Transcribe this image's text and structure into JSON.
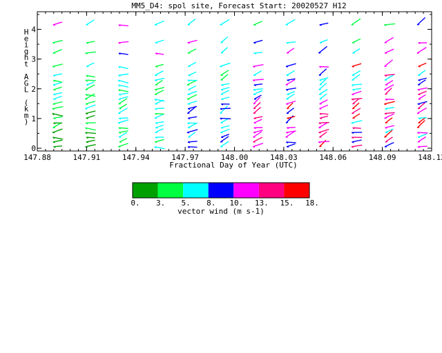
{
  "chart_data": {
    "type": "vector-field",
    "title": "MM5_D4: spol site,  Forecast Start: 20020527 H12",
    "xlabel": "Fractional Day of Year (UTC)",
    "ylabel": [
      "H",
      "e",
      "i",
      "g",
      "h",
      "t",
      "",
      "A",
      "G",
      "L",
      "",
      "(",
      "k",
      "m",
      ")"
    ],
    "x_ticks": [
      "147.88",
      "147.91",
      "147.94",
      "147.97",
      "148.00",
      "148.03",
      "148.06",
      "148.09",
      "148.12"
    ],
    "y_ticks": [
      "0",
      "1",
      "2",
      "3",
      "4"
    ],
    "xlim": [
      147.88,
      148.12
    ],
    "ylim": [
      0,
      4.5
    ],
    "colorbar": {
      "label": "vector wind (m s-1)",
      "tick_labels": [
        "0.",
        "3.",
        "5.",
        "8.",
        "10.",
        "13.",
        "15.",
        "18."
      ],
      "bounds": [
        0,
        3,
        5,
        8,
        10,
        13,
        15,
        18
      ],
      "colors": [
        "#00a000",
        "#00ff40",
        "#00ffff",
        "#0000ff",
        "#ff00ff",
        "#ff0080",
        "#ff0000"
      ]
    },
    "columns_x": [
      147.8925,
      147.9125,
      147.9325,
      147.9545,
      147.9745,
      147.9945,
      148.0145,
      148.0345,
      148.0545,
      148.0745,
      148.0945,
      148.1145
    ]
  }
}
